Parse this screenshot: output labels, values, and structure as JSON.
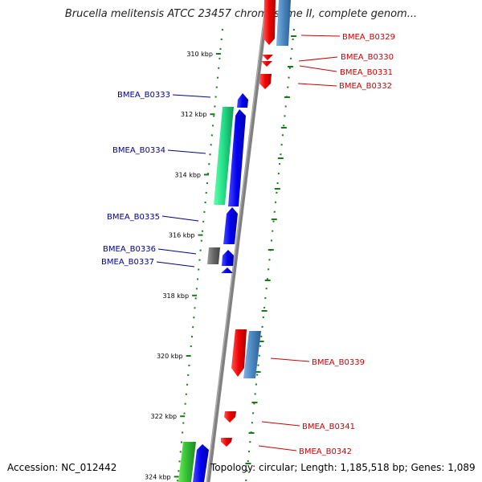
{
  "title": "Brucella melitensis ATCC 23457 chromosome II, complete genom...",
  "footer": {
    "accession": "Accession: NC_012442",
    "summary": "Topology: circular; Length: 1,185,518 bp; Genes: 1,089"
  },
  "ticks": [
    "310 kbp",
    "312 kbp",
    "314 kbp",
    "316 kbp",
    "318 kbp",
    "320 kbp",
    "322 kbp",
    "324 kbp"
  ],
  "colors": {
    "forward_gene": "#0000ee",
    "reverse_gene": "#ee0000",
    "forward_label": "#00008b",
    "reverse_label": "#cc0000",
    "backbone": "#808080",
    "tick": "#1a7a1a",
    "cds_green": "#22cc66",
    "cds_blue": "#3a7ab8",
    "cds_gray": "#666666"
  },
  "forward_genes": [
    {
      "name": "BMEA_B0333"
    },
    {
      "name": "BMEA_B0334"
    },
    {
      "name": "BMEA_B0335"
    },
    {
      "name": "BMEA_B0336"
    },
    {
      "name": "BMEA_B0337"
    }
  ],
  "reverse_genes": [
    {
      "name": "BMEA_B0329"
    },
    {
      "name": "BMEA_B0330"
    },
    {
      "name": "BMEA_B0331"
    },
    {
      "name": "BMEA_B0332"
    },
    {
      "name": "BMEA_B0339"
    },
    {
      "name": "BMEA_B0341"
    },
    {
      "name": "BMEA_B0342"
    }
  ]
}
